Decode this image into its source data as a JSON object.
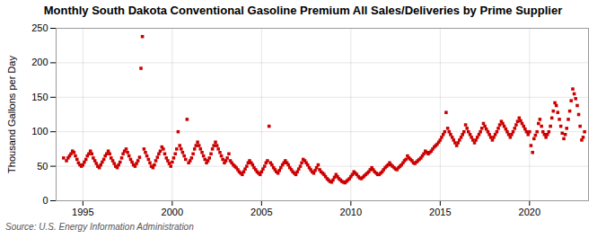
{
  "chart_data": {
    "type": "scatter",
    "title": "Monthly South Dakota Conventional Gasoline Premium All Sales/Deliveries by Prime Supplier",
    "ylabel": "Thousand Gallons per Day",
    "source": "Source: U.S. Energy Information Administration",
    "color": "#cc0000",
    "marker": "square",
    "grid": true,
    "xlim": [
      1993.5,
      2023.3
    ],
    "xticks": [
      1995,
      2000,
      2005,
      2010,
      2015,
      2020
    ],
    "ylim": [
      0,
      250
    ],
    "yticks": [
      0,
      50,
      100,
      150,
      200,
      250
    ],
    "x": [
      1993.92,
      1994.08,
      1994.17,
      1994.25,
      1994.33,
      1994.42,
      1994.5,
      1994.58,
      1994.67,
      1994.75,
      1994.83,
      1994.92,
      1995.0,
      1995.08,
      1995.17,
      1995.25,
      1995.33,
      1995.42,
      1995.5,
      1995.58,
      1995.67,
      1995.75,
      1995.83,
      1995.92,
      1996.0,
      1996.08,
      1996.17,
      1996.25,
      1996.33,
      1996.42,
      1996.5,
      1996.58,
      1996.67,
      1996.75,
      1996.83,
      1996.92,
      1997.0,
      1997.08,
      1997.17,
      1997.25,
      1997.33,
      1997.42,
      1997.5,
      1997.58,
      1997.67,
      1997.75,
      1997.83,
      1997.92,
      1998.0,
      1998.08,
      1998.17,
      1998.25,
      1998.33,
      1998.42,
      1998.5,
      1998.58,
      1998.67,
      1998.75,
      1998.83,
      1998.92,
      1999.0,
      1999.08,
      1999.17,
      1999.25,
      1999.33,
      1999.42,
      1999.5,
      1999.58,
      1999.67,
      1999.75,
      1999.83,
      1999.92,
      2000.0,
      2000.08,
      2000.17,
      2000.25,
      2000.33,
      2000.42,
      2000.5,
      2000.58,
      2000.67,
      2000.75,
      2000.83,
      2000.92,
      2001.0,
      2001.08,
      2001.17,
      2001.25,
      2001.33,
      2001.42,
      2001.5,
      2001.58,
      2001.67,
      2001.75,
      2001.83,
      2001.92,
      2002.0,
      2002.08,
      2002.17,
      2002.25,
      2002.33,
      2002.42,
      2002.5,
      2002.58,
      2002.67,
      2002.75,
      2002.83,
      2002.92,
      2003.0,
      2003.08,
      2003.17,
      2003.25,
      2003.33,
      2003.42,
      2003.5,
      2003.58,
      2003.67,
      2003.75,
      2003.83,
      2003.92,
      2004.0,
      2004.08,
      2004.17,
      2004.25,
      2004.33,
      2004.42,
      2004.5,
      2004.58,
      2004.67,
      2004.75,
      2004.83,
      2004.92,
      2005.0,
      2005.08,
      2005.17,
      2005.25,
      2005.33,
      2005.42,
      2005.5,
      2005.58,
      2005.67,
      2005.75,
      2005.83,
      2005.92,
      2006.0,
      2006.08,
      2006.17,
      2006.25,
      2006.33,
      2006.42,
      2006.5,
      2006.58,
      2006.67,
      2006.75,
      2006.83,
      2006.92,
      2007.0,
      2007.08,
      2007.17,
      2007.25,
      2007.33,
      2007.42,
      2007.5,
      2007.58,
      2007.67,
      2007.75,
      2007.83,
      2007.92,
      2008.0,
      2008.08,
      2008.17,
      2008.25,
      2008.33,
      2008.42,
      2008.5,
      2008.58,
      2008.67,
      2008.75,
      2008.83,
      2008.92,
      2009.0,
      2009.08,
      2009.17,
      2009.25,
      2009.33,
      2009.42,
      2009.5,
      2009.58,
      2009.67,
      2009.75,
      2009.83,
      2009.92,
      2010.0,
      2010.08,
      2010.17,
      2010.25,
      2010.33,
      2010.42,
      2010.5,
      2010.58,
      2010.67,
      2010.75,
      2010.83,
      2010.92,
      2011.0,
      2011.08,
      2011.17,
      2011.25,
      2011.33,
      2011.42,
      2011.5,
      2011.58,
      2011.67,
      2011.75,
      2011.83,
      2011.92,
      2012.0,
      2012.08,
      2012.17,
      2012.25,
      2012.33,
      2012.42,
      2012.5,
      2012.58,
      2012.67,
      2012.75,
      2012.83,
      2012.92,
      2013.0,
      2013.08,
      2013.17,
      2013.25,
      2013.33,
      2013.42,
      2013.5,
      2013.58,
      2013.67,
      2013.75,
      2013.83,
      2013.92,
      2014.0,
      2014.08,
      2014.17,
      2014.25,
      2014.33,
      2014.42,
      2014.5,
      2014.58,
      2014.67,
      2014.75,
      2014.83,
      2014.92,
      2015.0,
      2015.08,
      2015.17,
      2015.25,
      2015.33,
      2015.42,
      2015.5,
      2015.58,
      2015.67,
      2015.75,
      2015.83,
      2015.92,
      2016.0,
      2016.08,
      2016.17,
      2016.25,
      2016.33,
      2016.42,
      2016.5,
      2016.58,
      2016.67,
      2016.75,
      2016.83,
      2016.92,
      2017.0,
      2017.08,
      2017.17,
      2017.25,
      2017.33,
      2017.42,
      2017.5,
      2017.58,
      2017.67,
      2017.75,
      2017.83,
      2017.92,
      2018.0,
      2018.08,
      2018.17,
      2018.25,
      2018.33,
      2018.42,
      2018.5,
      2018.58,
      2018.67,
      2018.75,
      2018.83,
      2018.92,
      2019.0,
      2019.08,
      2019.17,
      2019.25,
      2019.33,
      2019.42,
      2019.5,
      2019.58,
      2019.67,
      2019.75,
      2019.83,
      2019.92,
      2020.0,
      2020.08,
      2020.17,
      2020.25,
      2020.33,
      2020.42,
      2020.5,
      2020.58,
      2020.67,
      2020.75,
      2020.83,
      2020.92,
      2021.0,
      2021.08,
      2021.17,
      2021.25,
      2021.33,
      2021.42,
      2021.5,
      2021.58,
      2021.67,
      2021.75,
      2021.83,
      2021.92,
      2022.0,
      2022.08,
      2022.17,
      2022.25,
      2022.33,
      2022.42,
      2022.5,
      2022.58,
      2022.67,
      2022.75,
      2022.83,
      2022.92,
      2023.0,
      2023.08
    ],
    "values": [
      62,
      58,
      62,
      65,
      68,
      72,
      70,
      65,
      60,
      55,
      52,
      50,
      52,
      56,
      60,
      65,
      68,
      72,
      68,
      62,
      58,
      54,
      50,
      48,
      52,
      56,
      60,
      65,
      68,
      72,
      68,
      62,
      58,
      54,
      50,
      48,
      52,
      56,
      62,
      68,
      72,
      75,
      70,
      65,
      60,
      56,
      52,
      50,
      54,
      58,
      63,
      192,
      238,
      75,
      70,
      65,
      60,
      55,
      50,
      48,
      52,
      58,
      63,
      68,
      72,
      78,
      75,
      68,
      62,
      58,
      54,
      50,
      56,
      62,
      68,
      75,
      100,
      80,
      75,
      70,
      65,
      60,
      118,
      55,
      58,
      62,
      68,
      75,
      80,
      85,
      80,
      75,
      70,
      65,
      60,
      55,
      58,
      62,
      68,
      75,
      80,
      85,
      80,
      75,
      70,
      65,
      60,
      55,
      58,
      62,
      68,
      58,
      55,
      52,
      50,
      48,
      45,
      42,
      40,
      38,
      42,
      46,
      50,
      55,
      58,
      55,
      52,
      48,
      45,
      42,
      40,
      38,
      42,
      46,
      50,
      55,
      58,
      108,
      55,
      52,
      48,
      45,
      42,
      40,
      44,
      48,
      52,
      55,
      58,
      55,
      52,
      48,
      45,
      42,
      40,
      38,
      42,
      46,
      50,
      55,
      60,
      58,
      55,
      52,
      48,
      45,
      42,
      40,
      44,
      48,
      52,
      45,
      42,
      40,
      38,
      35,
      32,
      30,
      28,
      27,
      30,
      34,
      38,
      35,
      32,
      30,
      28,
      27,
      26,
      28,
      30,
      32,
      35,
      38,
      42,
      40,
      38,
      35,
      33,
      32,
      34,
      36,
      38,
      40,
      42,
      45,
      48,
      45,
      42,
      40,
      38,
      38,
      40,
      42,
      45,
      48,
      50,
      52,
      55,
      52,
      50,
      48,
      46,
      45,
      48,
      50,
      52,
      55,
      58,
      60,
      65,
      62,
      60,
      58,
      55,
      54,
      56,
      58,
      60,
      62,
      65,
      68,
      72,
      70,
      68,
      70,
      72,
      75,
      78,
      80,
      82,
      85,
      88,
      92,
      96,
      100,
      128,
      105,
      100,
      96,
      92,
      88,
      84,
      80,
      84,
      88,
      92,
      96,
      100,
      110,
      105,
      100,
      96,
      92,
      88,
      84,
      88,
      92,
      96,
      100,
      105,
      112,
      108,
      104,
      100,
      96,
      92,
      88,
      92,
      96,
      100,
      105,
      110,
      115,
      112,
      108,
      104,
      100,
      96,
      92,
      96,
      100,
      105,
      110,
      115,
      120,
      116,
      112,
      108,
      104,
      100,
      96,
      100,
      80,
      70,
      90,
      95,
      100,
      112,
      118,
      108,
      100,
      96,
      92,
      96,
      100,
      108,
      120,
      130,
      142,
      138,
      128,
      118,
      108,
      98,
      90,
      96,
      105,
      118,
      130,
      145,
      162,
      155,
      148,
      138,
      125,
      108,
      88,
      92,
      100
    ]
  }
}
